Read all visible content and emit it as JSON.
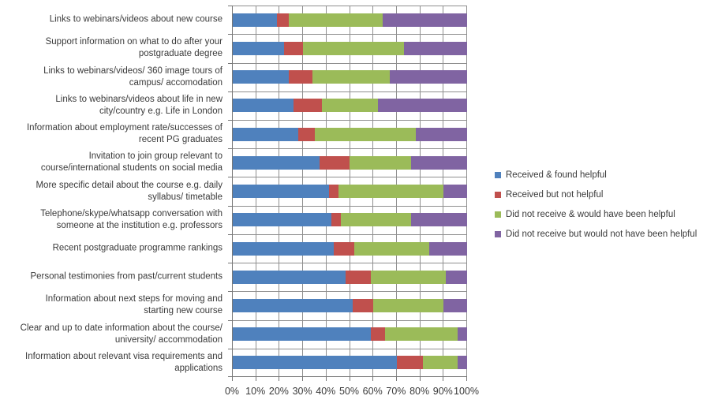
{
  "chart_data": {
    "type": "bar",
    "stacked": true,
    "orientation": "horizontal",
    "title": "",
    "xlabel": "",
    "ylabel": "",
    "xlim": [
      0,
      100
    ],
    "grid": true,
    "legend_position": "right",
    "x_ticks": [
      "0%",
      "10%",
      "20%",
      "30%",
      "40%",
      "50%",
      "60%",
      "70%",
      "80%",
      "90%",
      "100%"
    ],
    "categories": [
      "Links to webinars/videos about new course",
      "Support information on what to do after your\npostgraduate degree",
      "Links to webinars/videos/ 360 image tours of\ncampus/ accomodation",
      "Links to webinars/videos about life in new\ncity/country e.g. Life in London",
      "Information about employment rate/successes of\nrecent PG graduates",
      "Invitation to join group relevant to\ncourse/international students on social media",
      "More specific detail about the course e.g. daily\nsyllabus/ timetable",
      "Telephone/skype/whatsapp conversation with\nsomeone at the institution e.g. professors",
      "Recent postgraduate programme rankings",
      "Personal testimonies from past/current students",
      "Information about next steps for moving and\nstarting new course",
      "Clear and up to date information about the course/\nuniversity/ accommodation",
      "Information about relevant visa requirements and\napplications"
    ],
    "series": [
      {
        "name": "Received & found helpful",
        "color": "#4F81BD",
        "values": [
          19,
          22,
          24,
          26,
          28,
          37,
          41,
          42,
          43,
          48,
          51,
          59,
          70
        ]
      },
      {
        "name": "Received but not helpful",
        "color": "#C0504D",
        "values": [
          5,
          8,
          10,
          12,
          7,
          13,
          4,
          4,
          9,
          11,
          9,
          6,
          11
        ]
      },
      {
        "name": "Did not receive & would have been helpful",
        "color": "#9BBB59",
        "values": [
          40,
          43,
          33,
          24,
          43,
          26,
          45,
          30,
          32,
          32,
          30,
          31,
          15
        ]
      },
      {
        "name": "Did not receive but would not have been helpful",
        "color": "#8064A2",
        "values": [
          36,
          27,
          33,
          38,
          22,
          24,
          10,
          24,
          16,
          9,
          10,
          4,
          4
        ]
      }
    ]
  }
}
